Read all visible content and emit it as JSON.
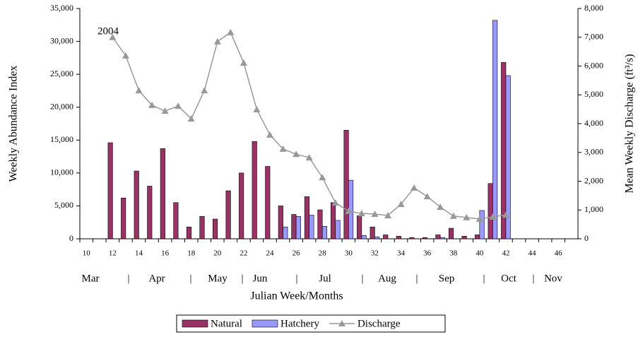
{
  "chart_data": {
    "type": "bar_line",
    "annotation": "2004",
    "xlabel": "Julian Week/Months",
    "ylabel": "Weekly Abundance Index",
    "y2label": "Mean Weekly Discharge (ft³/s)",
    "categories": [
      10,
      null,
      12,
      null,
      14,
      null,
      16,
      null,
      18,
      null,
      20,
      null,
      22,
      null,
      24,
      null,
      26,
      null,
      28,
      null,
      30,
      null,
      32,
      null,
      34,
      null,
      36,
      null,
      38,
      null,
      40,
      null,
      42,
      null,
      44,
      null,
      46,
      null
    ],
    "months": [
      "Mar",
      "Apr",
      "May",
      "Jun",
      "Jul",
      "Aug",
      "Sep",
      "Oct",
      "Nov"
    ],
    "ylim": [
      0,
      35000
    ],
    "yticks": [
      0,
      {
        "value": 5000,
        "label": "5,000"
      },
      {
        "value": 10000,
        "label": "10,000"
      },
      {
        "value": 15000,
        "label": "15,000"
      },
      {
        "value": 20000,
        "label": "20,000"
      },
      {
        "value": 25000,
        "label": "25,000"
      },
      {
        "value": 30000,
        "label": "30,000"
      },
      {
        "value": 35000,
        "label": "35,000"
      }
    ],
    "y2lim": [
      0,
      8000
    ],
    "y2ticks": [
      0,
      {
        "value": 1000,
        "label": "1,000"
      },
      {
        "value": 2000,
        "label": "2,000"
      },
      {
        "value": 3000,
        "label": "3,000"
      },
      {
        "value": 4000,
        "label": "4,000"
      },
      {
        "value": 5000,
        "label": "5,000"
      },
      {
        "value": 6000,
        "label": "6,000"
      },
      {
        "value": 7000,
        "label": "7,000"
      },
      {
        "value": 8000,
        "label": "8,000"
      }
    ],
    "series": [
      {
        "name": "Natural",
        "kind": "bar",
        "color": "#993366",
        "values": [
          null,
          null,
          14600,
          6200,
          10300,
          8000,
          13700,
          5500,
          1800,
          3400,
          3000,
          7300,
          10000,
          14800,
          11000,
          5000,
          3700,
          6400,
          4400,
          5500,
          16500,
          3500,
          1800,
          600,
          400,
          200,
          200,
          600,
          1600,
          400,
          600,
          8400,
          26800,
          null,
          null,
          null,
          null,
          null
        ]
      },
      {
        "name": "Hatchery",
        "kind": "bar",
        "color": "#9999ff",
        "values": [
          null,
          null,
          0,
          0,
          0,
          0,
          0,
          0,
          0,
          0,
          0,
          0,
          0,
          0,
          0,
          1800,
          3400,
          3600,
          1900,
          2800,
          8900,
          500,
          300,
          0,
          0,
          0,
          0,
          200,
          0,
          0,
          4300,
          33200,
          24800,
          null,
          null,
          null,
          null,
          null
        ]
      },
      {
        "name": "Discharge",
        "kind": "line",
        "axis": "y2",
        "color": "#999999",
        "values": [
          null,
          null,
          7000,
          6360,
          5150,
          4640,
          4440,
          4610,
          4170,
          5150,
          6850,
          7170,
          6110,
          4490,
          3610,
          3120,
          2940,
          2820,
          2130,
          1250,
          960,
          880,
          860,
          810,
          1200,
          1770,
          1470,
          1100,
          790,
          740,
          690,
          760,
          830,
          null,
          null,
          null,
          null,
          null
        ]
      }
    ]
  }
}
